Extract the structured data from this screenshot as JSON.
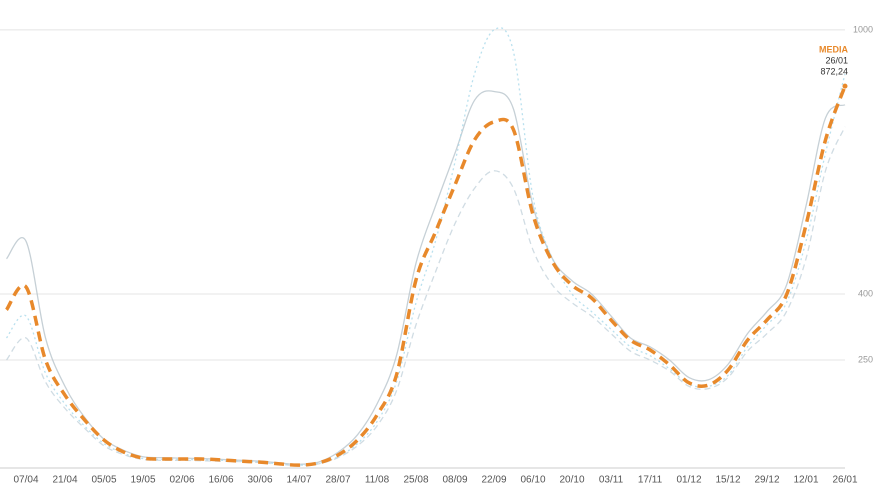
{
  "chart_data": {
    "type": "line",
    "categories": [
      null,
      "07/04",
      null,
      "21/04",
      null,
      "05/05",
      null,
      "19/05",
      null,
      "02/06",
      null,
      "16/06",
      null,
      "30/06",
      null,
      "14/07",
      null,
      "28/07",
      null,
      "11/08",
      null,
      "25/08",
      null,
      "08/09",
      null,
      "22/09",
      null,
      "06/10",
      null,
      "20/10",
      null,
      "03/11",
      null,
      "17/11",
      null,
      "01/12",
      null,
      "15/12",
      null,
      "29/12",
      null,
      "12/01",
      null,
      "26/01"
    ],
    "series": [
      {
        "color": "#b8c4cc",
        "dash": "solid",
        "values": [
          480,
          520,
          300,
          190,
          120,
          70,
          45,
          30,
          28,
          27,
          26,
          24,
          22,
          20,
          16,
          13,
          18,
          40,
          80,
          150,
          260,
          470,
          600,
          720,
          840,
          860,
          820,
          600,
          480,
          430,
          400,
          350,
          300,
          280,
          250,
          210,
          205,
          240,
          310,
          360,
          420,
          600,
          800,
          830
        ]
      },
      {
        "color": "#a8d8ea",
        "dash": "dotted",
        "values": [
          300,
          350,
          220,
          150,
          100,
          60,
          38,
          26,
          24,
          24,
          23,
          22,
          20,
          18,
          14,
          11,
          15,
          30,
          60,
          110,
          200,
          380,
          520,
          700,
          900,
          1000,
          950,
          620,
          480,
          400,
          360,
          320,
          280,
          260,
          230,
          195,
          190,
          215,
          280,
          330,
          380,
          520,
          720,
          900
        ]
      },
      {
        "color": "#c4d3dc",
        "dash": "dashed",
        "values": [
          250,
          300,
          200,
          140,
          95,
          55,
          35,
          24,
          22,
          22,
          21,
          20,
          19,
          17,
          13,
          10,
          14,
          28,
          55,
          100,
          180,
          330,
          450,
          560,
          640,
          680,
          640,
          500,
          420,
          380,
          350,
          310,
          270,
          250,
          225,
          190,
          185,
          210,
          270,
          310,
          360,
          480,
          680,
          780
        ]
      },
      {
        "name": "MEDIA",
        "color": "#e8892b",
        "dash": "dashed",
        "emphasis": true,
        "values": [
          364,
          416,
          250,
          170,
          114,
          68,
          41,
          27,
          25,
          25,
          25,
          23,
          20,
          18,
          14,
          11,
          16,
          34,
          68,
          125,
          216,
          432,
          541,
          648,
          750,
          791,
          773,
          580,
          473,
          420,
          391,
          341,
          295,
          273,
          239,
          198,
          193,
          227,
          295,
          341,
          398,
          557,
          750,
          872.24
        ],
        "value_labels": [
          null,
          null,
          null,
          null,
          null,
          null,
          null,
          null,
          null,
          null,
          null,
          null,
          null,
          null,
          null,
          null,
          null,
          null,
          null,
          null,
          null,
          null,
          null,
          null,
          null,
          null,
          null,
          null,
          null,
          null,
          null,
          null,
          null,
          null,
          null,
          null,
          null,
          null,
          null,
          null,
          null,
          null,
          null,
          "872,24"
        ]
      }
    ],
    "ylim": [
      0,
      1068
    ],
    "yticks": [
      250,
      400,
      1000
    ],
    "grid": true
  }
}
